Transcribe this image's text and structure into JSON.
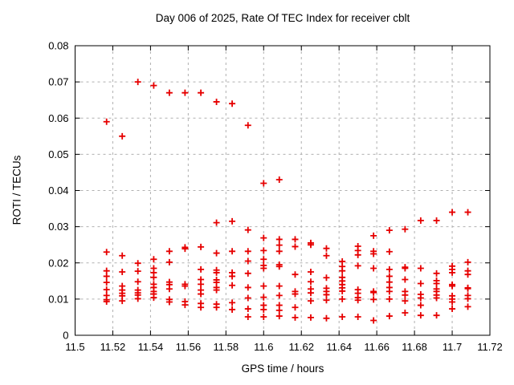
{
  "chart_data": {
    "type": "scatter",
    "title": "Day 006 of 2025, Rate Of TEC Index for receiver cblt",
    "xlabel": "GPS time / hours",
    "ylabel": "ROTI / TECUs",
    "xlim": [
      11.5,
      11.72
    ],
    "ylim": [
      0,
      0.08
    ],
    "xticks": [
      11.5,
      11.52,
      11.54,
      11.56,
      11.58,
      11.6,
      11.62,
      11.64,
      11.66,
      11.68,
      11.7,
      11.72
    ],
    "xtick_labels": [
      "11.5",
      "11.52",
      "11.54",
      "11.56",
      "11.58",
      "11.6",
      "11.62",
      "11.64",
      "11.66",
      "11.68",
      "11.7",
      "11.72"
    ],
    "yticks": [
      0,
      0.01,
      0.02,
      0.03,
      0.04,
      0.05,
      0.06,
      0.07,
      0.08
    ],
    "ytick_labels": [
      "0",
      "0.01",
      "0.02",
      "0.03",
      "0.04",
      "0.05",
      "0.06",
      "0.07",
      "0.08"
    ],
    "grid": true,
    "grid_style": "dashed",
    "grid_color": "#b0b0b0",
    "axis_color": "#000000",
    "background_color": "#ffffff",
    "legend": "none",
    "marker": {
      "shape": "plus",
      "color": "#e60000",
      "size": 8,
      "stroke_width": 1.8
    },
    "series": [
      {
        "name": "ROTI",
        "points": [
          [
            11.5167,
            0.059
          ],
          [
            11.5167,
            0.023
          ],
          [
            11.5167,
            0.0178
          ],
          [
            11.5167,
            0.0163
          ],
          [
            11.5167,
            0.0146
          ],
          [
            11.5167,
            0.0126
          ],
          [
            11.5167,
            0.011
          ],
          [
            11.5167,
            0.0098
          ],
          [
            11.5167,
            0.0093
          ],
          [
            11.525,
            0.055
          ],
          [
            11.525,
            0.022
          ],
          [
            11.525,
            0.0175
          ],
          [
            11.525,
            0.0136
          ],
          [
            11.525,
            0.0125
          ],
          [
            11.525,
            0.0116
          ],
          [
            11.525,
            0.0109
          ],
          [
            11.525,
            0.0095
          ],
          [
            11.5333,
            0.07
          ],
          [
            11.5333,
            0.0199
          ],
          [
            11.5333,
            0.0177
          ],
          [
            11.5333,
            0.0148
          ],
          [
            11.5333,
            0.0125
          ],
          [
            11.5333,
            0.0117
          ],
          [
            11.5333,
            0.0111
          ],
          [
            11.5333,
            0.0101
          ],
          [
            11.5417,
            0.069
          ],
          [
            11.5417,
            0.021
          ],
          [
            11.5417,
            0.0185
          ],
          [
            11.5417,
            0.0173
          ],
          [
            11.5417,
            0.016
          ],
          [
            11.5417,
            0.0141
          ],
          [
            11.5417,
            0.0132
          ],
          [
            11.5417,
            0.0121
          ],
          [
            11.5417,
            0.0114
          ],
          [
            11.5417,
            0.0104
          ],
          [
            11.55,
            0.067
          ],
          [
            11.55,
            0.0232
          ],
          [
            11.55,
            0.0202
          ],
          [
            11.55,
            0.0147
          ],
          [
            11.55,
            0.014
          ],
          [
            11.55,
            0.0128
          ],
          [
            11.55,
            0.0099
          ],
          [
            11.55,
            0.0092
          ],
          [
            11.5583,
            0.067
          ],
          [
            11.5583,
            0.0243
          ],
          [
            11.5583,
            0.0239
          ],
          [
            11.5583,
            0.0141
          ],
          [
            11.5583,
            0.0136
          ],
          [
            11.5583,
            0.0093
          ],
          [
            11.5583,
            0.0084
          ],
          [
            11.5667,
            0.067
          ],
          [
            11.5667,
            0.0244
          ],
          [
            11.5667,
            0.0182
          ],
          [
            11.5667,
            0.0154
          ],
          [
            11.5667,
            0.0141
          ],
          [
            11.5667,
            0.0125
          ],
          [
            11.5667,
            0.0114
          ],
          [
            11.5667,
            0.0088
          ],
          [
            11.5667,
            0.0077
          ],
          [
            11.575,
            0.0645
          ],
          [
            11.575,
            0.0311
          ],
          [
            11.575,
            0.0227
          ],
          [
            11.575,
            0.018
          ],
          [
            11.575,
            0.0173
          ],
          [
            11.575,
            0.0153
          ],
          [
            11.575,
            0.0146
          ],
          [
            11.575,
            0.0132
          ],
          [
            11.575,
            0.0125
          ],
          [
            11.575,
            0.0086
          ],
          [
            11.575,
            0.0077
          ],
          [
            11.5833,
            0.064
          ],
          [
            11.5833,
            0.0315
          ],
          [
            11.5833,
            0.0232
          ],
          [
            11.5833,
            0.0173
          ],
          [
            11.5833,
            0.0163
          ],
          [
            11.5833,
            0.0138
          ],
          [
            11.5833,
            0.009
          ],
          [
            11.5833,
            0.0071
          ],
          [
            11.5917,
            0.058
          ],
          [
            11.5917,
            0.0291
          ],
          [
            11.5917,
            0.0232
          ],
          [
            11.5917,
            0.0205
          ],
          [
            11.5917,
            0.0171
          ],
          [
            11.5917,
            0.0132
          ],
          [
            11.5917,
            0.0103
          ],
          [
            11.5917,
            0.0073
          ],
          [
            11.5917,
            0.0051
          ],
          [
            11.6,
            0.042
          ],
          [
            11.6,
            0.0269
          ],
          [
            11.6,
            0.0234
          ],
          [
            11.6,
            0.021
          ],
          [
            11.6,
            0.0193
          ],
          [
            11.6,
            0.0185
          ],
          [
            11.6,
            0.0136
          ],
          [
            11.6,
            0.0105
          ],
          [
            11.6,
            0.0083
          ],
          [
            11.6,
            0.0071
          ],
          [
            11.6,
            0.0051
          ],
          [
            11.6083,
            0.043
          ],
          [
            11.6083,
            0.0265
          ],
          [
            11.6083,
            0.0249
          ],
          [
            11.6083,
            0.0232
          ],
          [
            11.6083,
            0.0195
          ],
          [
            11.6083,
            0.019
          ],
          [
            11.6083,
            0.0136
          ],
          [
            11.6083,
            0.011
          ],
          [
            11.6083,
            0.0083
          ],
          [
            11.6083,
            0.0069
          ],
          [
            11.6083,
            0.0053
          ],
          [
            11.6167,
            0.0265
          ],
          [
            11.6167,
            0.0245
          ],
          [
            11.6167,
            0.0168
          ],
          [
            11.6167,
            0.0121
          ],
          [
            11.6167,
            0.0114
          ],
          [
            11.6167,
            0.0077
          ],
          [
            11.6167,
            0.0049
          ],
          [
            11.625,
            0.0255
          ],
          [
            11.625,
            0.025
          ],
          [
            11.625,
            0.0175
          ],
          [
            11.625,
            0.0148
          ],
          [
            11.625,
            0.0128
          ],
          [
            11.625,
            0.0117
          ],
          [
            11.625,
            0.0095
          ],
          [
            11.625,
            0.0049
          ],
          [
            11.6333,
            0.024
          ],
          [
            11.6333,
            0.022
          ],
          [
            11.6333,
            0.0159
          ],
          [
            11.6333,
            0.013
          ],
          [
            11.6333,
            0.0121
          ],
          [
            11.6333,
            0.0112
          ],
          [
            11.6333,
            0.0097
          ],
          [
            11.6333,
            0.0047
          ],
          [
            11.6417,
            0.0204
          ],
          [
            11.6417,
            0.019
          ],
          [
            11.6417,
            0.0178
          ],
          [
            11.6417,
            0.016
          ],
          [
            11.6417,
            0.015
          ],
          [
            11.6417,
            0.014
          ],
          [
            11.6417,
            0.0131
          ],
          [
            11.6417,
            0.0122
          ],
          [
            11.6417,
            0.01
          ],
          [
            11.6417,
            0.0051
          ],
          [
            11.65,
            0.0246
          ],
          [
            11.65,
            0.0234
          ],
          [
            11.65,
            0.0222
          ],
          [
            11.65,
            0.0192
          ],
          [
            11.65,
            0.0126
          ],
          [
            11.65,
            0.0116
          ],
          [
            11.65,
            0.0104
          ],
          [
            11.65,
            0.0097
          ],
          [
            11.65,
            0.0051
          ],
          [
            11.6583,
            0.0275
          ],
          [
            11.6583,
            0.0232
          ],
          [
            11.6583,
            0.0225
          ],
          [
            11.6583,
            0.0185
          ],
          [
            11.6583,
            0.0121
          ],
          [
            11.6583,
            0.0118
          ],
          [
            11.6583,
            0.0099
          ],
          [
            11.6583,
            0.0041
          ],
          [
            11.6667,
            0.029
          ],
          [
            11.6667,
            0.0231
          ],
          [
            11.6667,
            0.0182
          ],
          [
            11.6667,
            0.0163
          ],
          [
            11.6667,
            0.0147
          ],
          [
            11.6667,
            0.0132
          ],
          [
            11.6667,
            0.0121
          ],
          [
            11.6667,
            0.01
          ],
          [
            11.6667,
            0.0053
          ],
          [
            11.675,
            0.0293
          ],
          [
            11.675,
            0.0188
          ],
          [
            11.675,
            0.0185
          ],
          [
            11.675,
            0.0154
          ],
          [
            11.675,
            0.0121
          ],
          [
            11.675,
            0.0111
          ],
          [
            11.675,
            0.0095
          ],
          [
            11.675,
            0.0062
          ],
          [
            11.6833,
            0.0317
          ],
          [
            11.6833,
            0.0185
          ],
          [
            11.6833,
            0.0143
          ],
          [
            11.6833,
            0.0113
          ],
          [
            11.6833,
            0.0103
          ],
          [
            11.6833,
            0.0083
          ],
          [
            11.6833,
            0.0055
          ],
          [
            11.6917,
            0.0317
          ],
          [
            11.6917,
            0.0171
          ],
          [
            11.6917,
            0.0151
          ],
          [
            11.6917,
            0.0143
          ],
          [
            11.6917,
            0.0128
          ],
          [
            11.6917,
            0.0121
          ],
          [
            11.6917,
            0.0111
          ],
          [
            11.6917,
            0.0103
          ],
          [
            11.6917,
            0.0055
          ],
          [
            11.7,
            0.034
          ],
          [
            11.7,
            0.0191
          ],
          [
            11.7,
            0.0182
          ],
          [
            11.7,
            0.0173
          ],
          [
            11.7,
            0.014
          ],
          [
            11.7,
            0.0136
          ],
          [
            11.7,
            0.0109
          ],
          [
            11.7,
            0.01
          ],
          [
            11.7,
            0.0092
          ],
          [
            11.7,
            0.0073
          ],
          [
            11.7083,
            0.034
          ],
          [
            11.7083,
            0.0202
          ],
          [
            11.7083,
            0.0178
          ],
          [
            11.7083,
            0.0168
          ],
          [
            11.7083,
            0.0131
          ],
          [
            11.7083,
            0.0129
          ],
          [
            11.7083,
            0.011
          ],
          [
            11.7083,
            0.0101
          ],
          [
            11.7083,
            0.0079
          ]
        ]
      }
    ]
  }
}
